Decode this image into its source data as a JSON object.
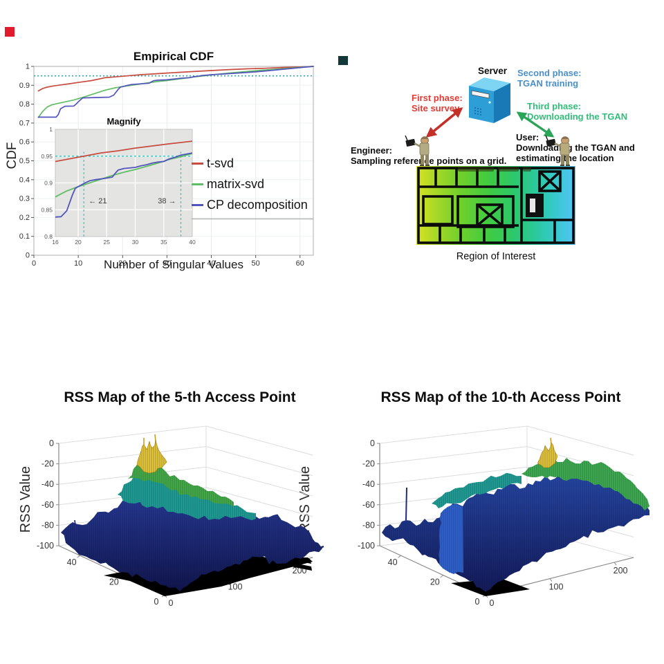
{
  "markers": {
    "red_square_color": "#e11b2b",
    "teal_square_color": "#12383a"
  },
  "chart_data": [
    {
      "id": "cdf",
      "type": "line",
      "title": "Empirical CDF",
      "xlabel": "Number of Singular Values",
      "ylabel": "CDF",
      "xlim": [
        0,
        63
      ],
      "ylim": [
        0,
        1
      ],
      "xticks": [
        0,
        10,
        20,
        30,
        40,
        50,
        60
      ],
      "yticks": [
        0,
        0.1,
        0.2,
        0.3,
        0.4,
        0.5,
        0.6,
        0.7,
        0.8,
        0.9,
        1
      ],
      "grid": true,
      "threshold": {
        "y": 0.95,
        "style": "dotted",
        "color": "#2fa8a8"
      },
      "legend_position": "right-middle",
      "series": [
        {
          "name": "t-svd",
          "color": "#c84b3f",
          "points": [
            [
              1,
              0.87
            ],
            [
              2,
              0.883
            ],
            [
              3,
              0.89
            ],
            [
              4,
              0.895
            ],
            [
              6,
              0.902
            ],
            [
              8,
              0.908
            ],
            [
              10,
              0.915
            ],
            [
              13,
              0.925
            ],
            [
              16,
              0.94
            ],
            [
              18,
              0.944
            ],
            [
              21,
              0.95
            ],
            [
              24,
              0.956
            ],
            [
              27,
              0.96
            ],
            [
              30,
              0.965
            ],
            [
              33,
              0.969
            ],
            [
              36,
              0.973
            ],
            [
              40,
              0.978
            ],
            [
              44,
              0.983
            ],
            [
              48,
              0.987
            ],
            [
              52,
              0.99
            ],
            [
              56,
              0.994
            ],
            [
              60,
              0.997
            ],
            [
              63,
              1.0
            ]
          ]
        },
        {
          "name": "matrix-svd",
          "color": "#5fbe63",
          "points": [
            [
              1,
              0.73
            ],
            [
              2,
              0.762
            ],
            [
              3,
              0.785
            ],
            [
              4,
              0.796
            ],
            [
              5,
              0.802
            ],
            [
              7,
              0.812
            ],
            [
              9,
              0.822
            ],
            [
              11,
              0.836
            ],
            [
              13,
              0.851
            ],
            [
              15,
              0.866
            ],
            [
              16,
              0.874
            ],
            [
              18,
              0.885
            ],
            [
              20,
              0.893
            ],
            [
              22,
              0.9
            ],
            [
              24,
              0.907
            ],
            [
              26,
              0.914
            ],
            [
              28,
              0.92
            ],
            [
              30,
              0.925
            ],
            [
              32,
              0.931
            ],
            [
              34,
              0.937
            ],
            [
              36,
              0.944
            ],
            [
              38,
              0.949
            ],
            [
              40,
              0.955
            ],
            [
              44,
              0.965
            ],
            [
              48,
              0.973
            ],
            [
              52,
              0.981
            ],
            [
              56,
              0.988
            ],
            [
              60,
              0.995
            ],
            [
              63,
              1.0
            ]
          ]
        },
        {
          "name": "CP decomposition",
          "color": "#5254bd",
          "points": [
            [
              1,
              0.731
            ],
            [
              5,
              0.731
            ],
            [
              5.5,
              0.745
            ],
            [
              6,
              0.776
            ],
            [
              7,
              0.789
            ],
            [
              9,
              0.79
            ],
            [
              9.5,
              0.8
            ],
            [
              10,
              0.812
            ],
            [
              11,
              0.833
            ],
            [
              14,
              0.835
            ],
            [
              17,
              0.837
            ],
            [
              18,
              0.848
            ],
            [
              19,
              0.878
            ],
            [
              19.5,
              0.89
            ],
            [
              20,
              0.893
            ],
            [
              21,
              0.899
            ],
            [
              22,
              0.904
            ],
            [
              23,
              0.906
            ],
            [
              25,
              0.909
            ],
            [
              26,
              0.911
            ],
            [
              26.5,
              0.918
            ],
            [
              27,
              0.924
            ],
            [
              28,
              0.927
            ],
            [
              30,
              0.929
            ],
            [
              31,
              0.932
            ],
            [
              32,
              0.934
            ],
            [
              33,
              0.937
            ],
            [
              34,
              0.939
            ],
            [
              35,
              0.94
            ],
            [
              36,
              0.945
            ],
            [
              37,
              0.948
            ],
            [
              38,
              0.952
            ],
            [
              39,
              0.954
            ],
            [
              40,
              0.956
            ],
            [
              43,
              0.96
            ],
            [
              46,
              0.965
            ],
            [
              50,
              0.971
            ],
            [
              54,
              0.98
            ],
            [
              58,
              0.989
            ],
            [
              61,
              0.996
            ],
            [
              63,
              1.0
            ]
          ]
        }
      ],
      "inset": {
        "title": "Magnify",
        "xlim": [
          16,
          40
        ],
        "ylim": [
          0.8,
          1
        ],
        "xticks": [
          16,
          20,
          25,
          30,
          35,
          40
        ],
        "yticks": [
          0.8,
          0.85,
          0.9,
          0.95,
          1
        ],
        "background": "#e4e4e2",
        "hline": {
          "y": 0.95,
          "color": "#3cc6c6"
        },
        "vlines": [
          {
            "x": 21,
            "label": "← 21",
            "label_side": "right"
          },
          {
            "x": 38,
            "label": "38 →",
            "label_side": "left"
          }
        ]
      }
    },
    {
      "id": "rss5",
      "type": "surface",
      "title": "RSS Map of the 5-th Access Point",
      "zlabel": "RSS Value",
      "zlim": [
        -100,
        0
      ],
      "zticks": [
        0,
        -20,
        -40,
        -60,
        -80,
        -100
      ],
      "xticks": [
        0,
        100,
        200
      ],
      "yticks": [
        0,
        20,
        40
      ],
      "xlim": [
        0,
        230
      ],
      "ylim": [
        0,
        50
      ],
      "colormap": "blue-teal-green-yellow (jet-like)",
      "peak_region": {
        "approx_x": 55,
        "approx_y": 30,
        "approx_z": -8
      },
      "notes": "black patches near front base and black streaks at right indicate missing samples"
    },
    {
      "id": "rss10",
      "type": "surface",
      "title": "RSS Map of the 10-th Access Point",
      "zlabel": "RSS Value",
      "zlim": [
        -100,
        0
      ],
      "zticks": [
        0,
        -20,
        -40,
        -60,
        -80,
        -100
      ],
      "xticks": [
        0,
        100,
        200
      ],
      "yticks": [
        0,
        20,
        40
      ],
      "xlim": [
        0,
        230
      ],
      "ylim": [
        0,
        50
      ],
      "colormap": "blue-teal-green-yellow (jet-like)",
      "peak_region": {
        "approx_x": 150,
        "approx_y": 35,
        "approx_z": -12
      },
      "notes": "tall blue cliff at front-left, thin spike on far left, small black patch at front base"
    }
  ],
  "diagram": {
    "server_label": "Server",
    "phase2": {
      "lines": [
        "Second phase:",
        "TGAN training"
      ],
      "color": "#4a8fc7"
    },
    "phase1": {
      "lines": [
        "First phase:",
        "Site survey"
      ],
      "color": "#e23b33"
    },
    "phase3": {
      "lines": [
        "Third phase:",
        "Downloading the TGAN"
      ],
      "color": "#2fbe79"
    },
    "engineer": {
      "lines": [
        "Engineer:",
        "Sampling reference points on a grid."
      ]
    },
    "user": {
      "lines": [
        "User:",
        "Downloading the TGAN and",
        "estimating the location"
      ]
    },
    "arrow_red_color": "#c43028",
    "arrow_green_color": "#2aa558",
    "region_caption": "Region of Interest"
  }
}
